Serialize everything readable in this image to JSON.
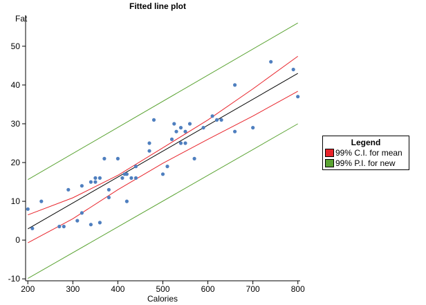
{
  "chart_data": {
    "type": "scatter",
    "title": "Fitted line plot",
    "xlabel": "Calories",
    "ylabel": "Fat",
    "xlim": [
      195,
      805
    ],
    "ylim": [
      -10.5,
      58
    ],
    "xticks": [
      200,
      300,
      400,
      500,
      600,
      700,
      800
    ],
    "yticks": [
      -10,
      0,
      10,
      20,
      30,
      40,
      50
    ],
    "grid": false,
    "legend_position": "right",
    "legend_title": "Legend",
    "colors": {
      "points": "#4f7fbf",
      "fit_line": "#000000",
      "ci": "#e8232a",
      "pi": "#5aa332"
    },
    "series": [
      {
        "name": "",
        "kind": "points",
        "x": [
          200,
          210,
          230,
          270,
          280,
          290,
          310,
          320,
          320,
          340,
          340,
          350,
          350,
          360,
          360,
          370,
          380,
          380,
          400,
          410,
          415,
          420,
          420,
          430,
          440,
          440,
          470,
          470,
          480,
          500,
          510,
          520,
          525,
          530,
          540,
          540,
          550,
          550,
          560,
          570,
          590,
          610,
          620,
          630,
          660,
          660,
          700,
          740,
          790,
          800
        ],
        "y": [
          8,
          3,
          10,
          3.5,
          3.5,
          13,
          5,
          7,
          14,
          4,
          15,
          15,
          16,
          4.5,
          16,
          21,
          11,
          13,
          21,
          16,
          17,
          17,
          10,
          16,
          16,
          19,
          23,
          25,
          31,
          17,
          19,
          26,
          30,
          28,
          25,
          29,
          28,
          25,
          30,
          21,
          29,
          32,
          31,
          31,
          28,
          40,
          29,
          46,
          44,
          37
        ]
      },
      {
        "name": "",
        "kind": "fit",
        "x": [
          200,
          800
        ],
        "y": [
          2.9,
          43.0
        ]
      },
      {
        "name": "99% C.I. for mean",
        "kind": "band",
        "x": [
          200,
          300,
          400,
          500,
          600,
          700,
          800
        ],
        "upper": [
          6.5,
          10.9,
          16.7,
          23.8,
          31.0,
          39.0,
          47.4
        ],
        "lower": [
          -0.7,
          5.5,
          13.0,
          19.8,
          26.0,
          32.0,
          38.4
        ]
      },
      {
        "name": "99% P.I. for new",
        "kind": "band",
        "x": [
          200,
          800
        ],
        "upper": [
          15.6,
          56.0
        ],
        "lower": [
          -9.9,
          30.0
        ]
      }
    ]
  }
}
